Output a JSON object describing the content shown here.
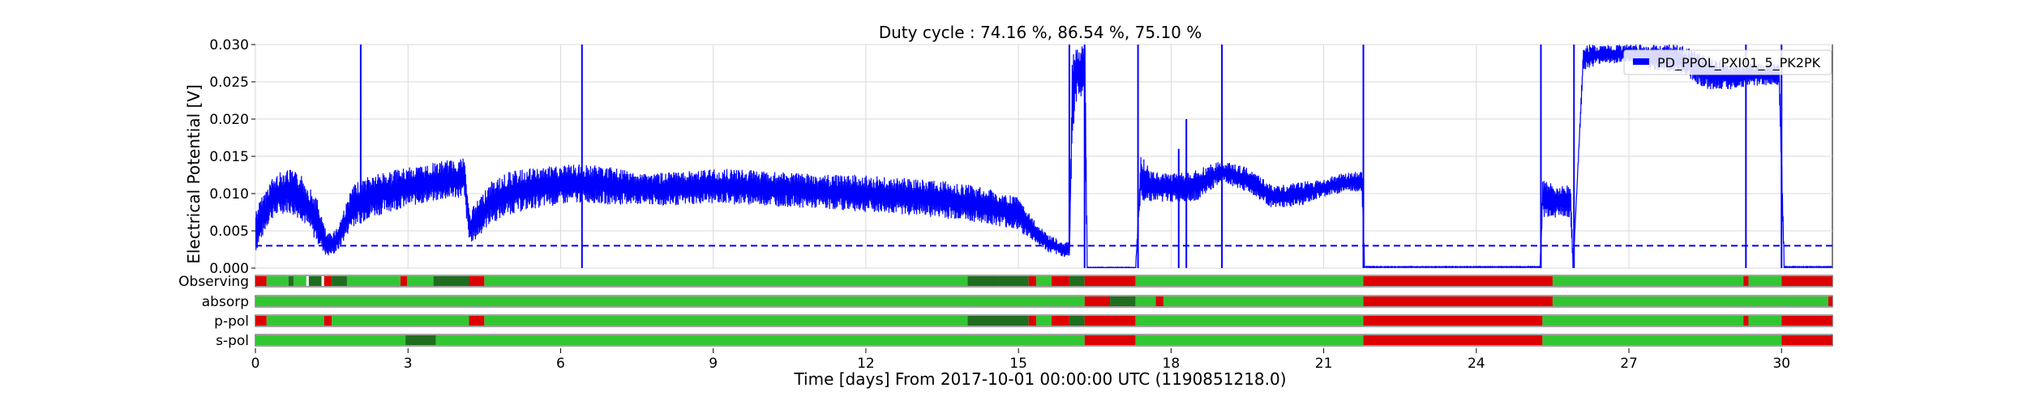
{
  "chart_data": {
    "type": "line",
    "title": "Duty cycle : 74.16 %, 86.54 %, 75.10 %",
    "xlabel": "Time [days] From 2017-10-01 00:00:00 UTC (1190851218.0)",
    "ylabel": "Electrical Potential [V]",
    "xlim": [
      0,
      31
    ],
    "ylim": [
      0,
      0.03
    ],
    "x_ticks": [
      0,
      3,
      6,
      9,
      12,
      15,
      18,
      21,
      24,
      27,
      30
    ],
    "x_tick_labels": [
      "0",
      "3",
      "6",
      "9",
      "12",
      "15",
      "18",
      "21",
      "24",
      "27",
      "30"
    ],
    "y_ticks": [
      0,
      0.005,
      0.01,
      0.015,
      0.02,
      0.025,
      0.03
    ],
    "y_tick_labels": [
      "0.000",
      "0.005",
      "0.010",
      "0.015",
      "0.020",
      "0.025",
      "0.030"
    ],
    "grid": true,
    "legend_position": "top-right",
    "series": [
      {
        "name": "PD_PPOL_PXI01_5_PK2PK",
        "color": "#0000ff",
        "band": true,
        "x": [
          0,
          0.3,
          0.6,
          0.9,
          1.2,
          1.4,
          1.6,
          1.9,
          2.2,
          2.6,
          3.0,
          3.4,
          3.8,
          4.1,
          4.2,
          4.3,
          4.6,
          5.0,
          5.5,
          6.0,
          6.5,
          7.0,
          7.5,
          8.0,
          8.5,
          9.0,
          9.5,
          10.0,
          10.5,
          11.0,
          11.5,
          12.0,
          12.5,
          13.0,
          13.5,
          14.0,
          14.5,
          15.0,
          15.3,
          15.6,
          15.9,
          16.0,
          16.05,
          16.15,
          16.3,
          16.35,
          17.3,
          17.4,
          17.6,
          18.0,
          18.5,
          19.0,
          19.5,
          20.0,
          20.5,
          21.0,
          21.4,
          21.75,
          21.8,
          21.85,
          25.25,
          25.3,
          25.6,
          25.85,
          25.9,
          26.1,
          26.5,
          27.0,
          27.5,
          28.0,
          28.5,
          29.0,
          29.5,
          29.95,
          30.05,
          31
        ],
        "lo": [
          0.002,
          0.0065,
          0.0075,
          0.0065,
          0.0035,
          0.0015,
          0.002,
          0.0055,
          0.0065,
          0.0075,
          0.0082,
          0.0088,
          0.0092,
          0.0095,
          0.0035,
          0.0035,
          0.0058,
          0.0072,
          0.008,
          0.0085,
          0.0088,
          0.0085,
          0.0085,
          0.0083,
          0.0085,
          0.0087,
          0.0085,
          0.0084,
          0.0082,
          0.008,
          0.0078,
          0.0075,
          0.0073,
          0.007,
          0.0067,
          0.0063,
          0.0058,
          0.005,
          0.0035,
          0.002,
          0.0015,
          0.0015,
          0.015,
          0.023,
          0.023,
          0.0,
          0.0,
          0.009,
          0.009,
          0.0088,
          0.009,
          0.0115,
          0.0102,
          0.008,
          0.0082,
          0.0095,
          0.0102,
          0.0102,
          0.0001,
          0.0001,
          0.0001,
          0.0066,
          0.0068,
          0.0068,
          0.0001,
          0.0265,
          0.0275,
          0.0275,
          0.0265,
          0.0262,
          0.024,
          0.024,
          0.0245,
          0.0245,
          0.0001,
          0.0001
        ],
        "hi": [
          0.008,
          0.012,
          0.0135,
          0.0125,
          0.0095,
          0.0045,
          0.0055,
          0.011,
          0.0125,
          0.013,
          0.0135,
          0.014,
          0.0145,
          0.015,
          0.0075,
          0.0085,
          0.0115,
          0.013,
          0.0135,
          0.0138,
          0.014,
          0.0135,
          0.0128,
          0.0128,
          0.013,
          0.0133,
          0.0133,
          0.013,
          0.0128,
          0.0126,
          0.0125,
          0.0125,
          0.0122,
          0.012,
          0.0118,
          0.0112,
          0.0105,
          0.0095,
          0.0065,
          0.0045,
          0.0035,
          0.0035,
          0.03,
          0.03,
          0.03,
          0.0001,
          0.0001,
          0.0155,
          0.013,
          0.0128,
          0.0132,
          0.0145,
          0.0135,
          0.011,
          0.0115,
          0.012,
          0.0128,
          0.013,
          0.0002,
          0.0002,
          0.0002,
          0.0118,
          0.0112,
          0.0115,
          0.0002,
          0.03,
          0.03,
          0.03,
          0.03,
          0.03,
          0.0285,
          0.0275,
          0.0275,
          0.0275,
          0.0002,
          0.0002
        ],
        "spikes": [
          {
            "x": 2.07,
            "y0": 0.006,
            "y1": 0.03
          },
          {
            "x": 6.42,
            "y0": 0.0,
            "y1": 0.03
          },
          {
            "x": 16.0,
            "y0": 0.003,
            "y1": 0.03
          },
          {
            "x": 16.3,
            "y0": 0.0,
            "y1": 0.03
          },
          {
            "x": 17.35,
            "y0": 0.0,
            "y1": 0.03
          },
          {
            "x": 18.15,
            "y0": 0.0,
            "y1": 0.016
          },
          {
            "x": 18.3,
            "y0": 0.0,
            "y1": 0.02
          },
          {
            "x": 19.0,
            "y0": 0.0,
            "y1": 0.03
          },
          {
            "x": 21.78,
            "y0": 0.0,
            "y1": 0.03
          },
          {
            "x": 25.27,
            "y0": 0.0,
            "y1": 0.03
          },
          {
            "x": 25.92,
            "y0": 0.0,
            "y1": 0.03
          },
          {
            "x": 29.3,
            "y0": 0.0,
            "y1": 0.03
          },
          {
            "x": 30.0,
            "y0": 0.0,
            "y1": 0.03
          }
        ]
      }
    ],
    "threshold": {
      "y": 0.003,
      "color": "#0000ff",
      "style": "dashed"
    },
    "state_rows": [
      {
        "label": "Observing",
        "segments": [
          {
            "x0": 0,
            "x1": 0.22,
            "state": "off"
          },
          {
            "x0": 0.22,
            "x1": 0.65,
            "state": "on"
          },
          {
            "x0": 0.65,
            "x1": 0.75,
            "state": "dim"
          },
          {
            "x0": 0.75,
            "x1": 1.0,
            "state": "on"
          },
          {
            "x0": 1.05,
            "x1": 1.3,
            "state": "dim"
          },
          {
            "x0": 1.35,
            "x1": 1.5,
            "state": "off"
          },
          {
            "x0": 1.5,
            "x1": 1.8,
            "state": "dim"
          },
          {
            "x0": 1.8,
            "x1": 2.85,
            "state": "on"
          },
          {
            "x0": 2.85,
            "x1": 2.98,
            "state": "off"
          },
          {
            "x0": 2.98,
            "x1": 3.5,
            "state": "on"
          },
          {
            "x0": 3.5,
            "x1": 4.2,
            "state": "dim"
          },
          {
            "x0": 4.2,
            "x1": 4.5,
            "state": "off"
          },
          {
            "x0": 4.5,
            "x1": 14.0,
            "state": "on"
          },
          {
            "x0": 14.0,
            "x1": 14.6,
            "state": "dim"
          },
          {
            "x0": 14.6,
            "x1": 15.2,
            "state": "dim"
          },
          {
            "x0": 15.2,
            "x1": 15.35,
            "state": "off"
          },
          {
            "x0": 15.35,
            "x1": 15.65,
            "state": "on"
          },
          {
            "x0": 15.65,
            "x1": 16.0,
            "state": "off"
          },
          {
            "x0": 16.0,
            "x1": 16.3,
            "state": "dim"
          },
          {
            "x0": 16.3,
            "x1": 17.3,
            "state": "off"
          },
          {
            "x0": 17.3,
            "x1": 21.78,
            "state": "on"
          },
          {
            "x0": 21.78,
            "x1": 25.5,
            "state": "off"
          },
          {
            "x0": 25.5,
            "x1": 29.25,
            "state": "on"
          },
          {
            "x0": 29.25,
            "x1": 29.35,
            "state": "off"
          },
          {
            "x0": 29.35,
            "x1": 30.0,
            "state": "on"
          },
          {
            "x0": 30.0,
            "x1": 31.0,
            "state": "off"
          }
        ]
      },
      {
        "label": "absorp",
        "segments": [
          {
            "x0": 0,
            "x1": 16.3,
            "state": "on"
          },
          {
            "x0": 16.3,
            "x1": 16.8,
            "state": "off"
          },
          {
            "x0": 16.8,
            "x1": 17.3,
            "state": "dim"
          },
          {
            "x0": 17.3,
            "x1": 17.7,
            "state": "on"
          },
          {
            "x0": 17.7,
            "x1": 17.85,
            "state": "off"
          },
          {
            "x0": 17.85,
            "x1": 21.78,
            "state": "on"
          },
          {
            "x0": 21.78,
            "x1": 25.5,
            "state": "off"
          },
          {
            "x0": 25.5,
            "x1": 30.92,
            "state": "on"
          },
          {
            "x0": 30.92,
            "x1": 31.0,
            "state": "off"
          }
        ]
      },
      {
        "label": "p-pol",
        "segments": [
          {
            "x0": 0,
            "x1": 0.22,
            "state": "off"
          },
          {
            "x0": 0.22,
            "x1": 1.35,
            "state": "on"
          },
          {
            "x0": 1.35,
            "x1": 1.5,
            "state": "off"
          },
          {
            "x0": 1.5,
            "x1": 4.2,
            "state": "on"
          },
          {
            "x0": 4.2,
            "x1": 4.5,
            "state": "off"
          },
          {
            "x0": 4.5,
            "x1": 14.0,
            "state": "on"
          },
          {
            "x0": 14.0,
            "x1": 15.2,
            "state": "dim"
          },
          {
            "x0": 15.2,
            "x1": 15.35,
            "state": "off"
          },
          {
            "x0": 15.35,
            "x1": 15.65,
            "state": "on"
          },
          {
            "x0": 15.65,
            "x1": 16.0,
            "state": "off"
          },
          {
            "x0": 16.0,
            "x1": 16.3,
            "state": "dim"
          },
          {
            "x0": 16.3,
            "x1": 17.3,
            "state": "off"
          },
          {
            "x0": 17.3,
            "x1": 21.78,
            "state": "on"
          },
          {
            "x0": 21.78,
            "x1": 25.3,
            "state": "off"
          },
          {
            "x0": 25.3,
            "x1": 29.25,
            "state": "on"
          },
          {
            "x0": 29.25,
            "x1": 29.35,
            "state": "off"
          },
          {
            "x0": 29.35,
            "x1": 30.0,
            "state": "on"
          },
          {
            "x0": 30.0,
            "x1": 31.0,
            "state": "off"
          }
        ]
      },
      {
        "label": "s-pol",
        "segments": [
          {
            "x0": 0,
            "x1": 2.95,
            "state": "on"
          },
          {
            "x0": 2.95,
            "x1": 3.55,
            "state": "dim"
          },
          {
            "x0": 3.55,
            "x1": 16.3,
            "state": "on"
          },
          {
            "x0": 16.3,
            "x1": 17.3,
            "state": "off"
          },
          {
            "x0": 17.3,
            "x1": 21.78,
            "state": "on"
          },
          {
            "x0": 21.78,
            "x1": 25.3,
            "state": "off"
          },
          {
            "x0": 25.3,
            "x1": 30.0,
            "state": "on"
          },
          {
            "x0": 30.0,
            "x1": 31.0,
            "state": "off"
          }
        ]
      }
    ],
    "state_colors": {
      "on": "#33c633",
      "dim": "#1f6e1f",
      "off": "#dd0000"
    }
  }
}
